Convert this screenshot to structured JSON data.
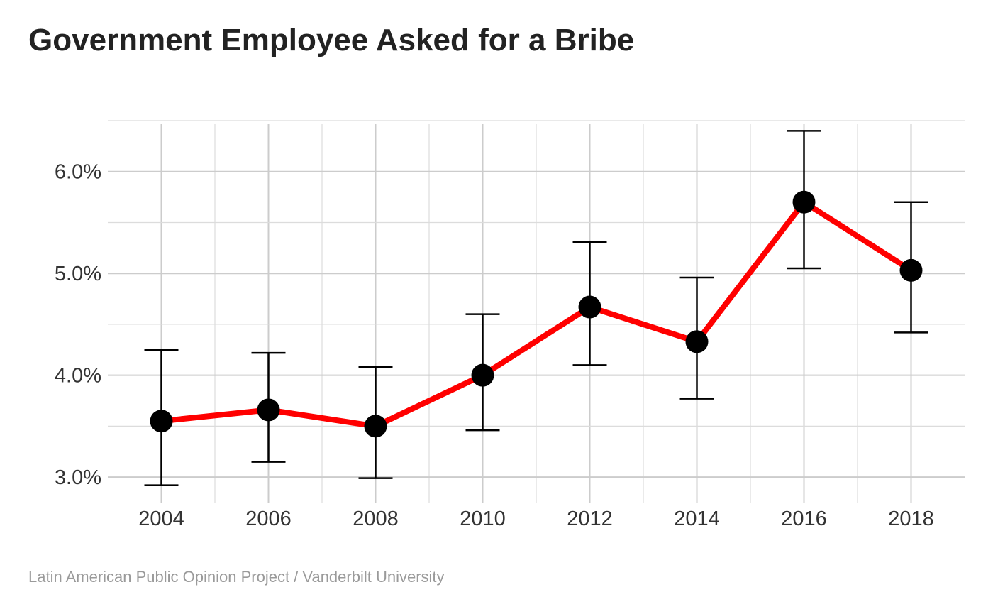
{
  "title": "Government Employee Asked for a Bribe",
  "caption": "Latin American Public Opinion Project / Vanderbilt University",
  "chart_data": {
    "type": "line",
    "title": "Government Employee Asked for a Bribe",
    "xlabel": "",
    "ylabel": "",
    "x": [
      2004,
      2006,
      2008,
      2010,
      2012,
      2014,
      2016,
      2018
    ],
    "x_tick_labels": [
      "2004",
      "2006",
      "2008",
      "2010",
      "2012",
      "2014",
      "2016",
      "2018"
    ],
    "y_tick_values": [
      3.0,
      4.0,
      5.0,
      6.0
    ],
    "y_tick_labels": [
      "3.0%",
      "4.0%",
      "5.0%",
      "6.0%"
    ],
    "xlim": [
      2003,
      2019
    ],
    "ylim": [
      2.75,
      6.5
    ],
    "grid": true,
    "series": [
      {
        "values": [
          3.55,
          3.66,
          3.5,
          4.0,
          4.67,
          4.33,
          5.7,
          5.03
        ],
        "ci_low": [
          2.92,
          3.15,
          2.99,
          3.46,
          4.1,
          3.77,
          5.05,
          4.42
        ],
        "ci_high": [
          4.25,
          4.22,
          4.08,
          4.6,
          5.31,
          4.96,
          6.4,
          5.7
        ]
      }
    ],
    "line_color": "#ff0000",
    "point_color": "#000000"
  }
}
